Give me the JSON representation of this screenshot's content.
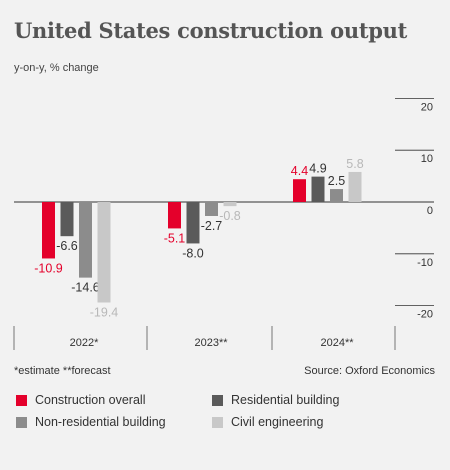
{
  "title": "United States construction output",
  "subtitle": "y-on-y, % change",
  "footnote": "*estimate  **forecast",
  "source": "Source: Oxford Economics",
  "chart_data": {
    "type": "bar",
    "categories": [
      "2022*",
      "2023**",
      "2024**"
    ],
    "series": [
      {
        "name": "Construction overall",
        "color": "#e4002b",
        "values": [
          -10.9,
          -5.1,
          4.4
        ]
      },
      {
        "name": "Residential building",
        "color": "#5a5a5a",
        "values": [
          -6.6,
          -8.0,
          4.9
        ]
      },
      {
        "name": "Non-residential building",
        "color": "#8c8c8c",
        "values": [
          -14.6,
          -2.7,
          2.5
        ]
      },
      {
        "name": "Civil engineering",
        "color": "#c8c8c8",
        "values": [
          -19.4,
          -0.8,
          5.8
        ]
      }
    ],
    "value_labels": [
      [
        "-10.9",
        "-5.1",
        "4.4"
      ],
      [
        "-6.6",
        "-8.0",
        "4.9"
      ],
      [
        "-14.6",
        "-2.7",
        "2.5"
      ],
      [
        "-19.4",
        "-0.8",
        "5.8"
      ]
    ],
    "ylim": [
      -20,
      20
    ],
    "yticks": [
      20,
      10,
      0,
      -10,
      -20
    ],
    "ytick_labels": [
      "20",
      "10",
      "0",
      "-10",
      "-20"
    ],
    "xlabel": "",
    "ylabel": "",
    "grid": false,
    "legend_position": "bottom"
  }
}
